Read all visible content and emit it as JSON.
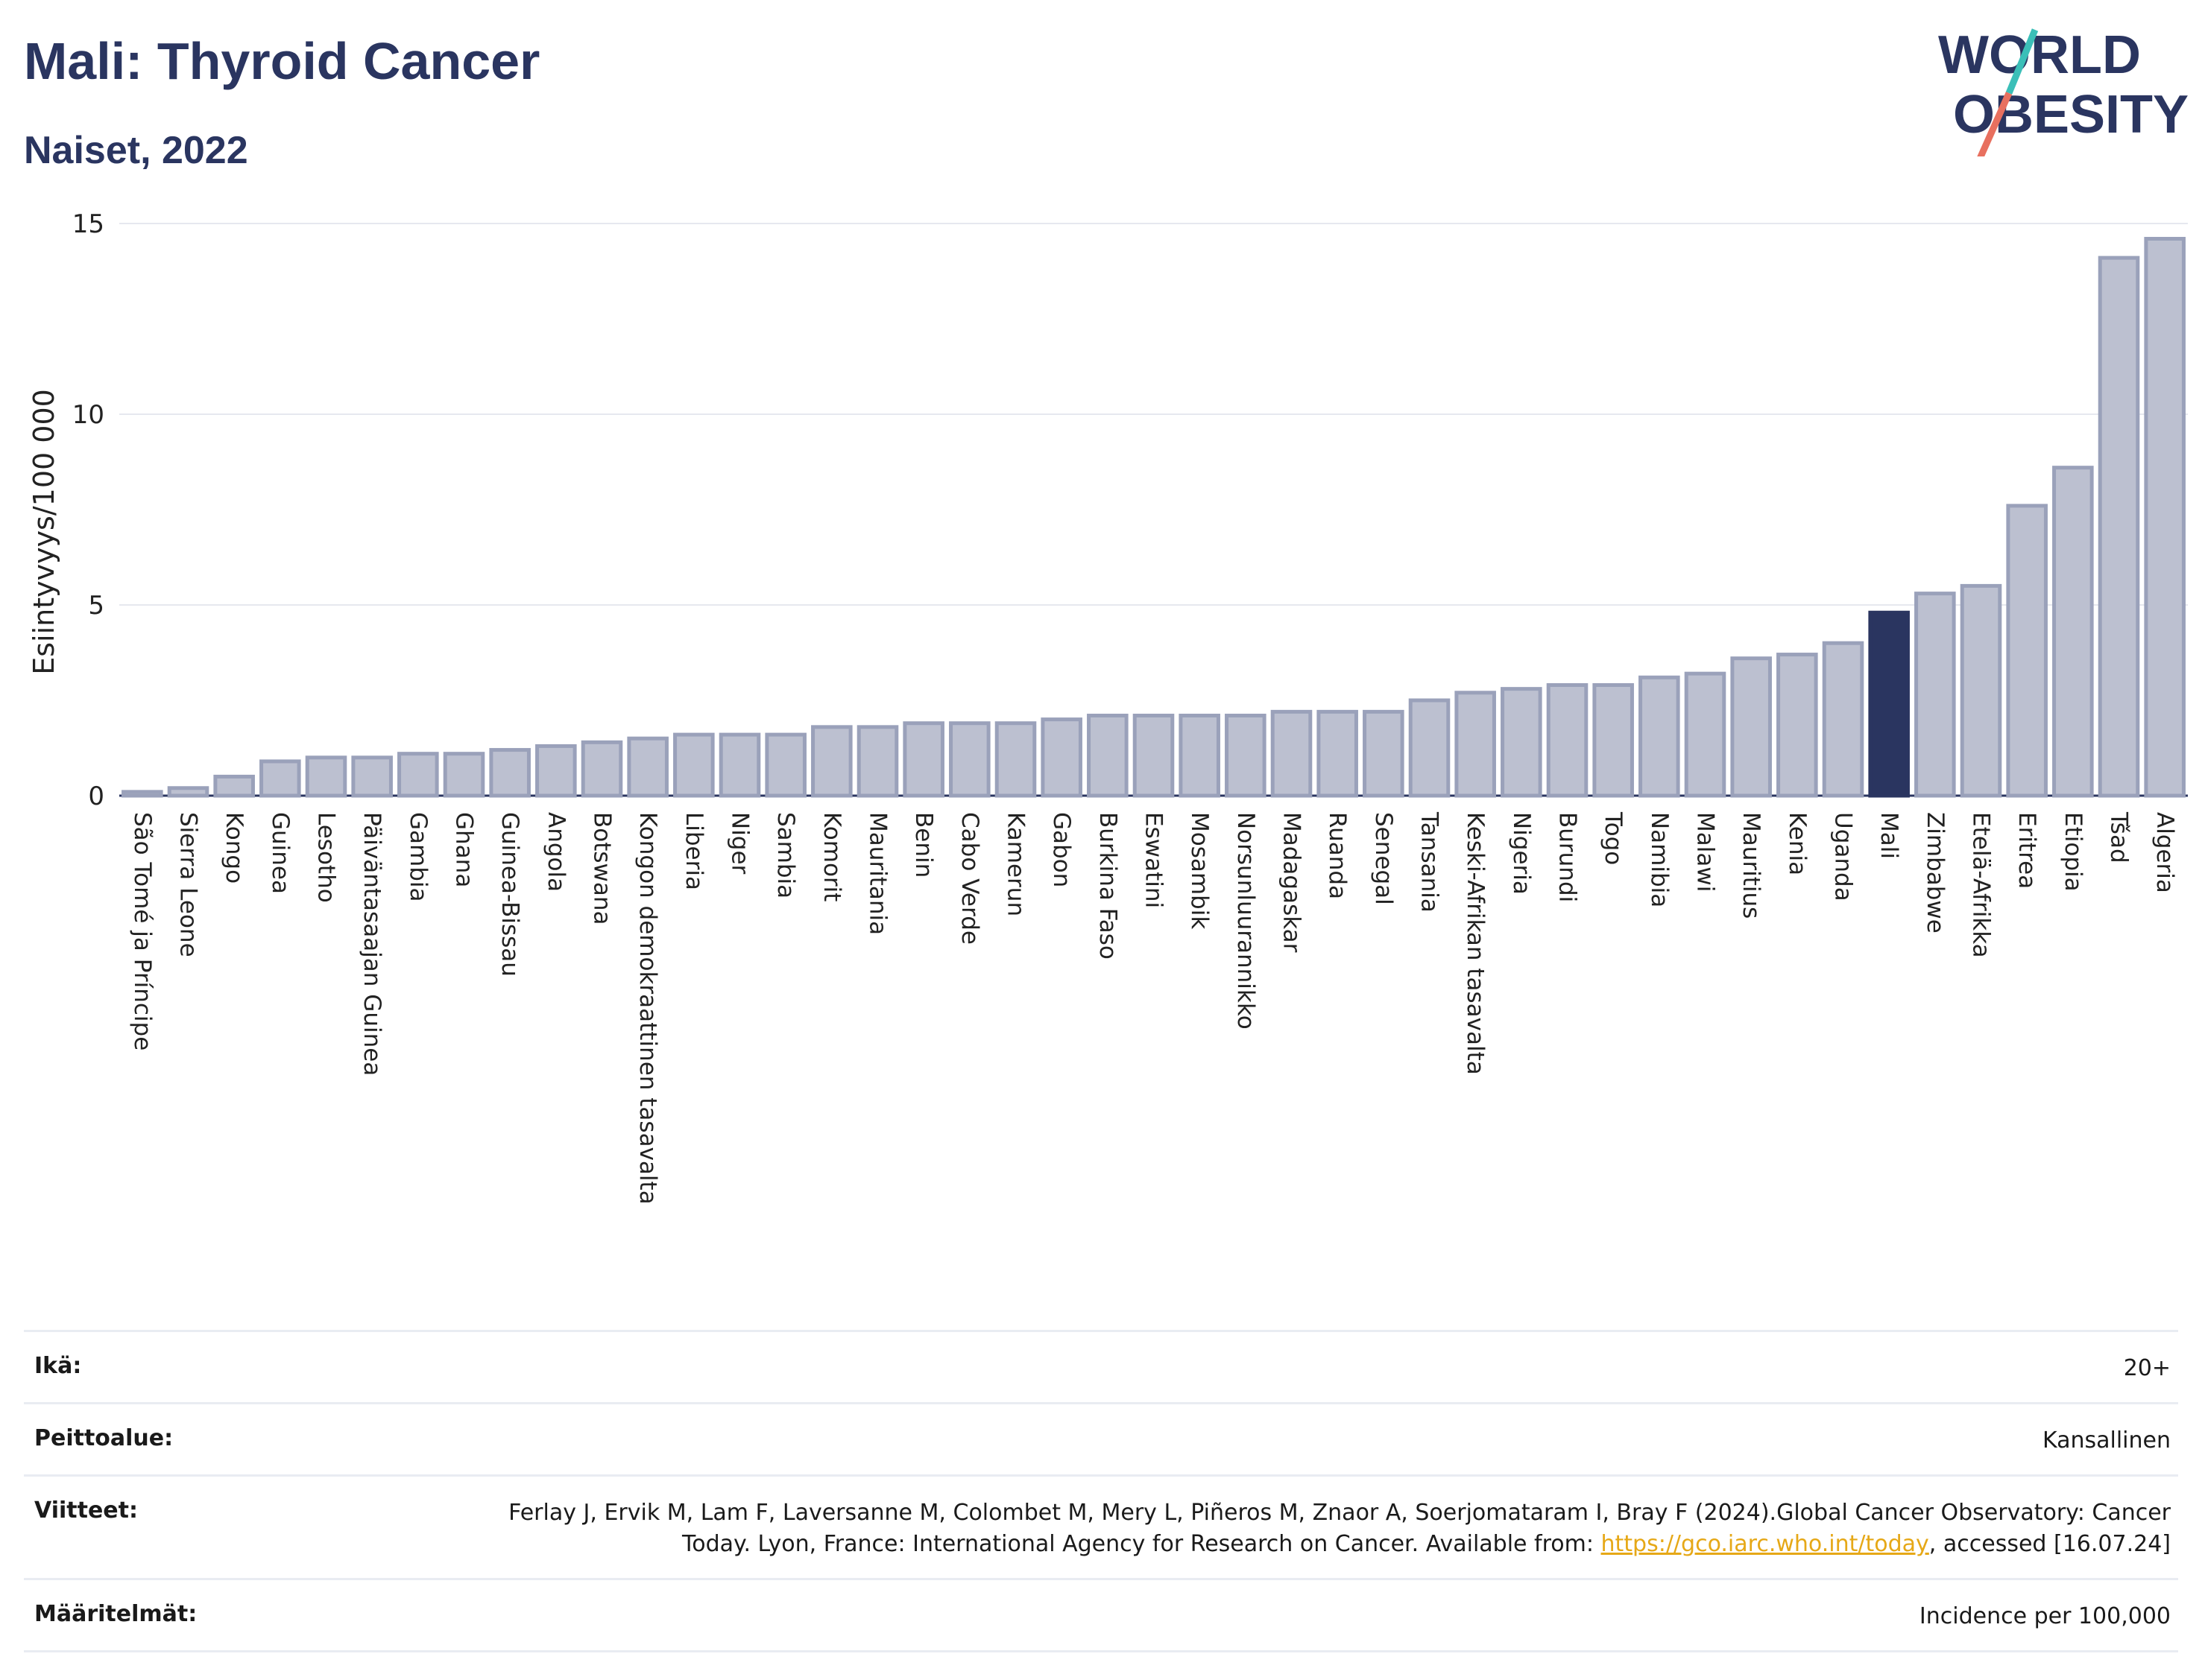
{
  "header": {
    "title": "Mali: Thyroid Cancer",
    "subtitle": "Naiset, 2022"
  },
  "logo": {
    "line1": "WORLD",
    "line2": "OBESITY",
    "colors": {
      "text": "#2a3560",
      "slash_top": "#3bbfb8",
      "slash_bottom": "#e8705f"
    }
  },
  "chart_data": {
    "type": "bar",
    "ylabel": "Esiintyvyys/100 000",
    "ylim": [
      0,
      15
    ],
    "yticks": [
      0,
      5,
      10,
      15
    ],
    "grid": true,
    "highlight": "Mali",
    "colors": {
      "bar": "#bcc0d0",
      "bar_edge": "#9aa1ba",
      "highlight": "#2a3560"
    },
    "categories": [
      "São Tomé ja Príncipe",
      "Sierra Leone",
      "Kongo",
      "Guinea",
      "Lesotho",
      "Päiväntasaajan Guinea",
      "Gambia",
      "Ghana",
      "Guinea-Bissau",
      "Angola",
      "Botswana",
      "Kongon demokraattinen tasavalta",
      "Liberia",
      "Niger",
      "Sambia",
      "Komorit",
      "Mauritania",
      "Benin",
      "Cabo Verde",
      "Kamerun",
      "Gabon",
      "Burkina Faso",
      "Eswatini",
      "Mosambik",
      "Norsunluurannikko",
      "Madagaskar",
      "Ruanda",
      "Senegal",
      "Tansania",
      "Keski-Afrikan tasavalta",
      "Nigeria",
      "Burundi",
      "Togo",
      "Namibia",
      "Malawi",
      "Mauritius",
      "Kenia",
      "Uganda",
      "Mali",
      "Zimbabwe",
      "Etelä-Afrikka",
      "Eritrea",
      "Etiopia",
      "Tšad",
      "Algeria"
    ],
    "values": [
      0.1,
      0.2,
      0.5,
      0.9,
      1.0,
      1.0,
      1.1,
      1.1,
      1.2,
      1.3,
      1.4,
      1.5,
      1.6,
      1.6,
      1.6,
      1.8,
      1.8,
      1.9,
      1.9,
      1.9,
      2.0,
      2.1,
      2.1,
      2.1,
      2.1,
      2.2,
      2.2,
      2.2,
      2.5,
      2.7,
      2.8,
      2.9,
      2.9,
      3.1,
      3.2,
      3.6,
      3.7,
      4.0,
      4.8,
      5.3,
      5.5,
      7.6,
      8.6,
      14.1,
      14.6
    ]
  },
  "info": [
    {
      "key": "Ikä:",
      "value": "20+"
    },
    {
      "key": "Peittoalue:",
      "value": "Kansallinen"
    },
    {
      "key": "Viitteet:",
      "value_before": "Ferlay J, Ervik M, Lam F, Laversanne M, Colombet M, Mery L, Piñeros M, Znaor A, Soerjomataram I, Bray F (2024).Global Cancer Observatory: Cancer Today. Lyon, France: International Agency for Research on Cancer. Available from: ",
      "link": "https://gco.iarc.who.int/today",
      "value_after": ", accessed [16.07.24]"
    },
    {
      "key": "Määritelmät:",
      "value": "Incidence per 100,000"
    }
  ]
}
